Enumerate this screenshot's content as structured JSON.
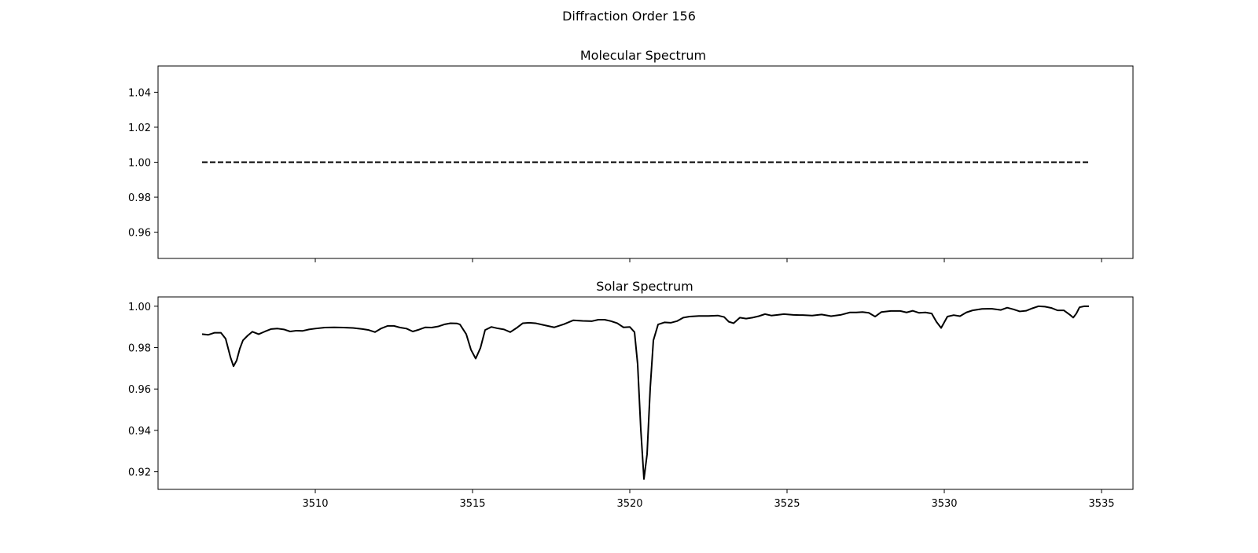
{
  "figure": {
    "suptitle": "Diffraction Order 156"
  },
  "chart_data": [
    {
      "type": "line",
      "title": "Molecular Spectrum",
      "xlabel": "",
      "ylabel": "",
      "xlim": [
        3505.0,
        3536.0
      ],
      "ylim": [
        0.945,
        1.055
      ],
      "xticks": [
        3510,
        3515,
        3520,
        3525,
        3530,
        3535
      ],
      "xtick_labels_shown": false,
      "yticks": [
        0.96,
        0.98,
        1.0,
        1.02,
        1.04
      ],
      "ytick_labels": [
        "0.96",
        "0.98",
        "1.00",
        "1.02",
        "1.04"
      ],
      "grid": false,
      "series": [
        {
          "color": "#000000",
          "linestyle": "dashed",
          "x": [
            3506.4,
            3534.6
          ],
          "y": [
            1.0,
            1.0
          ]
        }
      ]
    },
    {
      "type": "line",
      "title": "Solar Spectrum",
      "xlabel": "",
      "ylabel": "",
      "xlim": [
        3505.0,
        3536.0
      ],
      "ylim": [
        0.9115,
        1.0045
      ],
      "xticks": [
        3510,
        3515,
        3520,
        3525,
        3530,
        3535
      ],
      "xtick_labels": [
        "3510",
        "3515",
        "3520",
        "3525",
        "3530",
        "3535"
      ],
      "yticks": [
        0.92,
        0.94,
        0.96,
        0.98,
        1.0
      ],
      "ytick_labels": [
        "0.92",
        "0.94",
        "0.96",
        "0.98",
        "1.00"
      ],
      "grid": false,
      "series": [
        {
          "color": "#000000",
          "linestyle": "solid",
          "x": [
            3506.4,
            3506.6,
            3506.8,
            3507.0,
            3507.15,
            3507.3,
            3507.4,
            3507.5,
            3507.6,
            3507.7,
            3507.85,
            3508.0,
            3508.2,
            3508.4,
            3508.6,
            3508.8,
            3509.0,
            3509.2,
            3509.4,
            3509.6,
            3509.8,
            3510.0,
            3510.3,
            3510.6,
            3510.9,
            3511.2,
            3511.5,
            3511.7,
            3511.9,
            3512.1,
            3512.3,
            3512.5,
            3512.7,
            3512.9,
            3513.1,
            3513.3,
            3513.5,
            3513.7,
            3513.9,
            3514.1,
            3514.3,
            3514.5,
            3514.6,
            3514.8,
            3514.95,
            3515.1,
            3515.25,
            3515.4,
            3515.6,
            3515.8,
            3516.0,
            3516.2,
            3516.4,
            3516.6,
            3516.8,
            3517.0,
            3517.3,
            3517.6,
            3517.9,
            3518.2,
            3518.5,
            3518.8,
            3519.0,
            3519.2,
            3519.4,
            3519.6,
            3519.8,
            3520.0,
            3520.15,
            3520.25,
            3520.35,
            3520.45,
            3520.55,
            3520.65,
            3520.75,
            3520.9,
            3521.1,
            3521.3,
            3521.5,
            3521.7,
            3521.9,
            3522.2,
            3522.5,
            3522.8,
            3523.0,
            3523.15,
            3523.3,
            3523.5,
            3523.7,
            3523.9,
            3524.1,
            3524.3,
            3524.5,
            3524.7,
            3524.9,
            3525.2,
            3525.5,
            3525.8,
            3526.1,
            3526.4,
            3526.7,
            3527.0,
            3527.2,
            3527.4,
            3527.6,
            3527.8,
            3528.0,
            3528.3,
            3528.6,
            3528.8,
            3529.0,
            3529.2,
            3529.4,
            3529.6,
            3529.75,
            3529.9,
            3530.1,
            3530.3,
            3530.5,
            3530.7,
            3530.9,
            3531.2,
            3531.5,
            3531.8,
            3532.0,
            3532.2,
            3532.4,
            3532.6,
            3532.8,
            3533.0,
            3533.2,
            3533.4,
            3533.6,
            3533.8,
            3534.0,
            3534.1,
            3534.2,
            3534.3,
            3534.45,
            3534.6
          ],
          "y": [
            0.9865,
            0.9862,
            0.9872,
            0.9872,
            0.9843,
            0.9755,
            0.971,
            0.9738,
            0.9795,
            0.9835,
            0.9858,
            0.9877,
            0.9865,
            0.9878,
            0.989,
            0.9892,
            0.9888,
            0.9878,
            0.9882,
            0.9881,
            0.9888,
            0.9892,
            0.9897,
            0.9898,
            0.9897,
            0.9895,
            0.989,
            0.9885,
            0.9875,
            0.9893,
            0.9905,
            0.9905,
            0.9897,
            0.9892,
            0.9878,
            0.9887,
            0.9898,
            0.9897,
            0.9902,
            0.9912,
            0.9918,
            0.9917,
            0.9912,
            0.9865,
            0.979,
            0.9747,
            0.9798,
            0.9885,
            0.99,
            0.9893,
            0.9888,
            0.9875,
            0.9895,
            0.9918,
            0.992,
            0.9918,
            0.9908,
            0.9898,
            0.9913,
            0.9932,
            0.9929,
            0.9928,
            0.9935,
            0.9935,
            0.9928,
            0.9918,
            0.9898,
            0.99,
            0.9875,
            0.972,
            0.9405,
            0.9165,
            0.9285,
            0.9605,
            0.9835,
            0.9912,
            0.9922,
            0.992,
            0.9928,
            0.9945,
            0.995,
            0.9953,
            0.9953,
            0.9955,
            0.9948,
            0.9925,
            0.9918,
            0.9945,
            0.994,
            0.9945,
            0.9952,
            0.9962,
            0.9955,
            0.9958,
            0.9962,
            0.9958,
            0.9957,
            0.9955,
            0.996,
            0.9952,
            0.9958,
            0.997,
            0.997,
            0.9972,
            0.9968,
            0.995,
            0.9972,
            0.9977,
            0.9977,
            0.997,
            0.9978,
            0.9968,
            0.997,
            0.9965,
            0.9925,
            0.9895,
            0.995,
            0.9957,
            0.9952,
            0.997,
            0.998,
            0.9987,
            0.9988,
            0.9982,
            0.9993,
            0.9985,
            0.9975,
            0.9978,
            0.999,
            1.0,
            0.9998,
            0.9992,
            0.998,
            0.998,
            0.9958,
            0.9945,
            0.9965,
            0.9995,
            1.0,
            1.0
          ]
        }
      ]
    }
  ]
}
